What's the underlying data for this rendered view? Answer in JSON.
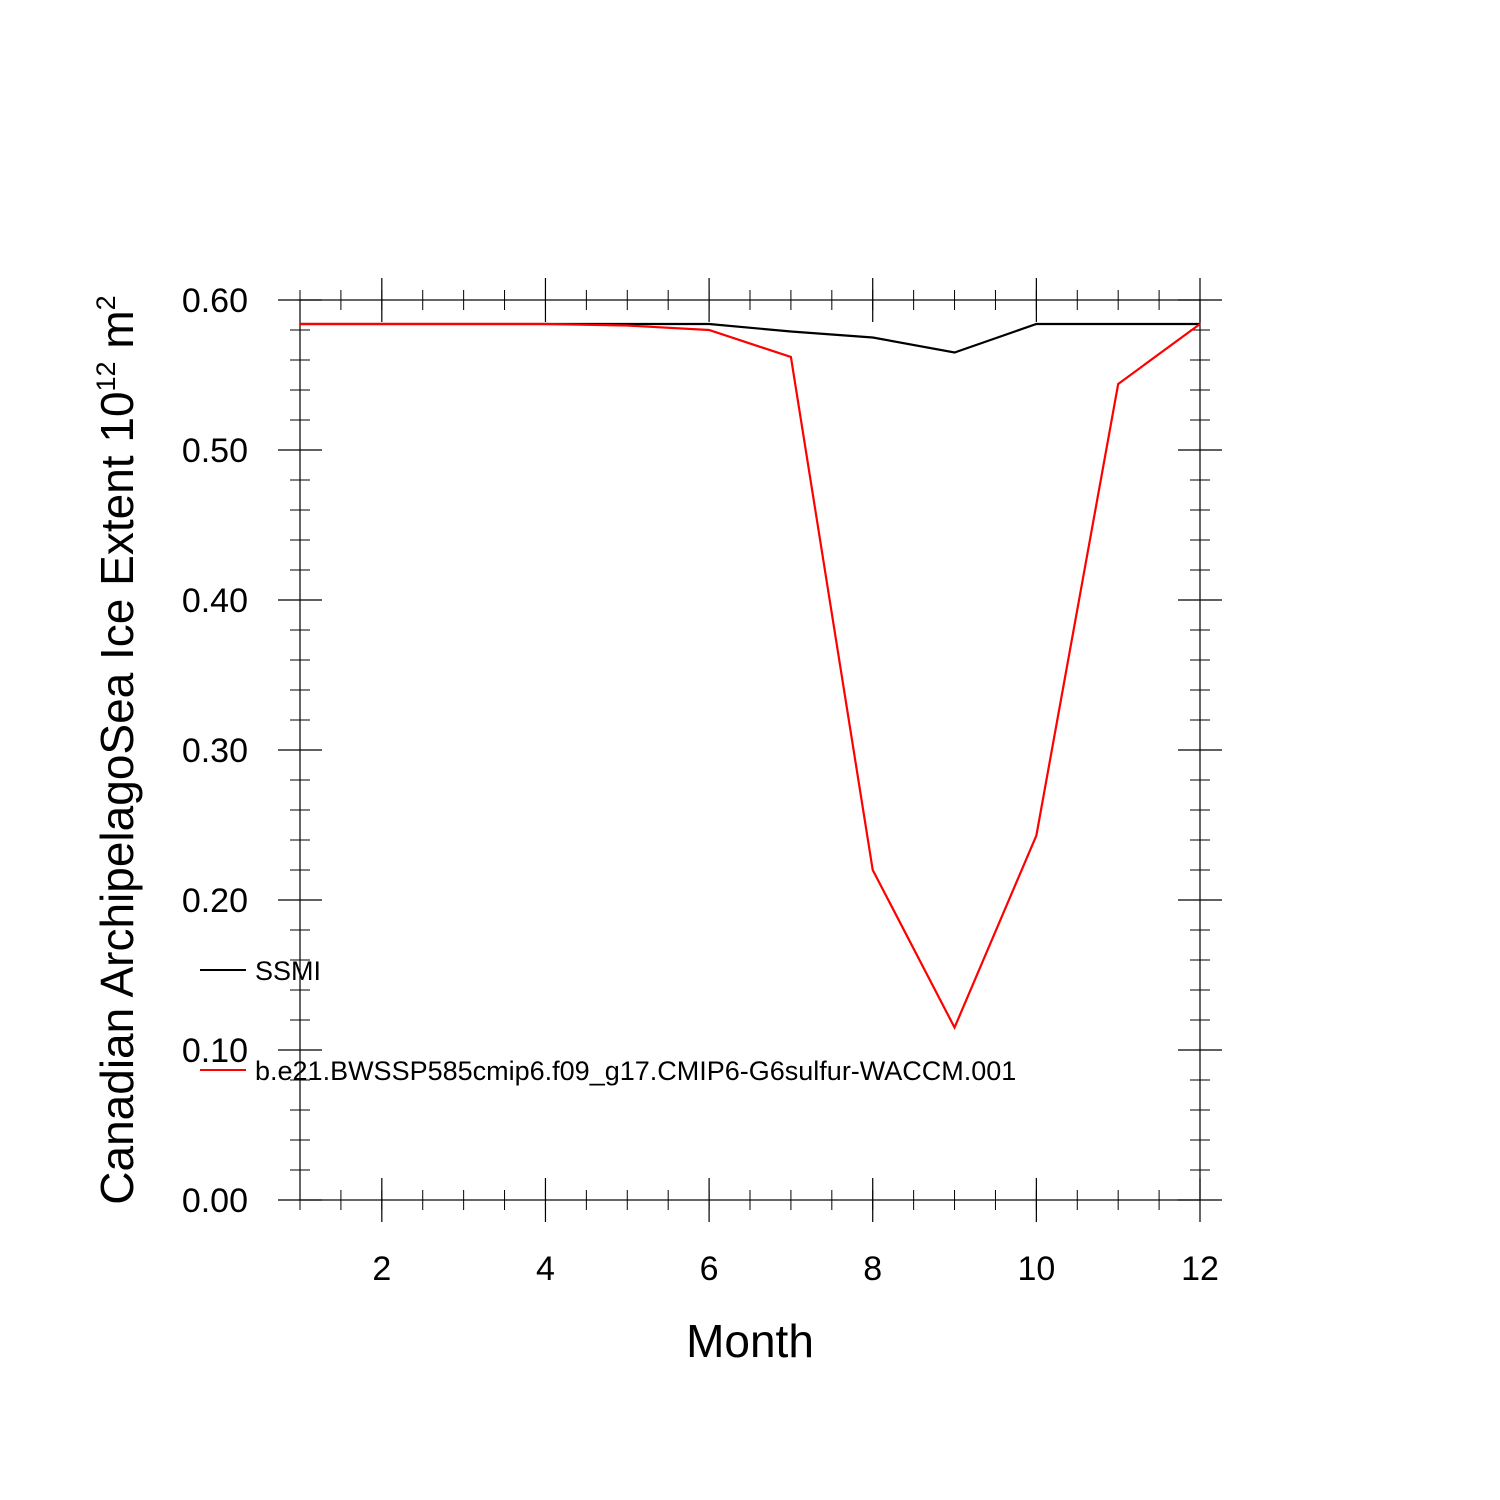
{
  "chart_data": {
    "type": "line",
    "xlabel": "Month",
    "ylabel": {
      "prefix": "Canadian ArchipelagoSea Ice Extent 10",
      "exponent": "12",
      "unit": " m",
      "unit_exponent": "2"
    },
    "xlim": [
      1,
      12
    ],
    "ylim": [
      0.0,
      0.6
    ],
    "x_major_ticks": [
      2,
      4,
      6,
      8,
      10,
      12
    ],
    "x_tick_labels": [
      "2",
      "4",
      "6",
      "8",
      "10",
      "12"
    ],
    "y_major_ticks": [
      0.0,
      0.1,
      0.2,
      0.3,
      0.4,
      0.5,
      0.6
    ],
    "y_tick_labels": [
      "0.00",
      "0.10",
      "0.20",
      "0.30",
      "0.40",
      "0.50",
      "0.60"
    ],
    "x_minor_step": 0.5,
    "y_minor_step": 0.02,
    "grid": false,
    "legend_position": "left",
    "x": [
      1,
      2,
      3,
      4,
      5,
      6,
      7,
      8,
      9,
      10,
      11,
      12
    ],
    "series": [
      {
        "name": "SSMI",
        "color": "#000000",
        "values": [
          0.584,
          0.584,
          0.584,
          0.584,
          0.584,
          0.584,
          0.579,
          0.575,
          0.565,
          0.584,
          0.584,
          0.584
        ]
      },
      {
        "name": "b.e21.BWSSP585cmip6.f09_g17.CMIP6-G6sulfur-WACCM.001",
        "color": "#ff0000",
        "values": [
          0.584,
          0.584,
          0.584,
          0.584,
          0.583,
          0.58,
          0.562,
          0.22,
          0.115,
          0.243,
          0.544,
          0.584
        ]
      }
    ]
  }
}
